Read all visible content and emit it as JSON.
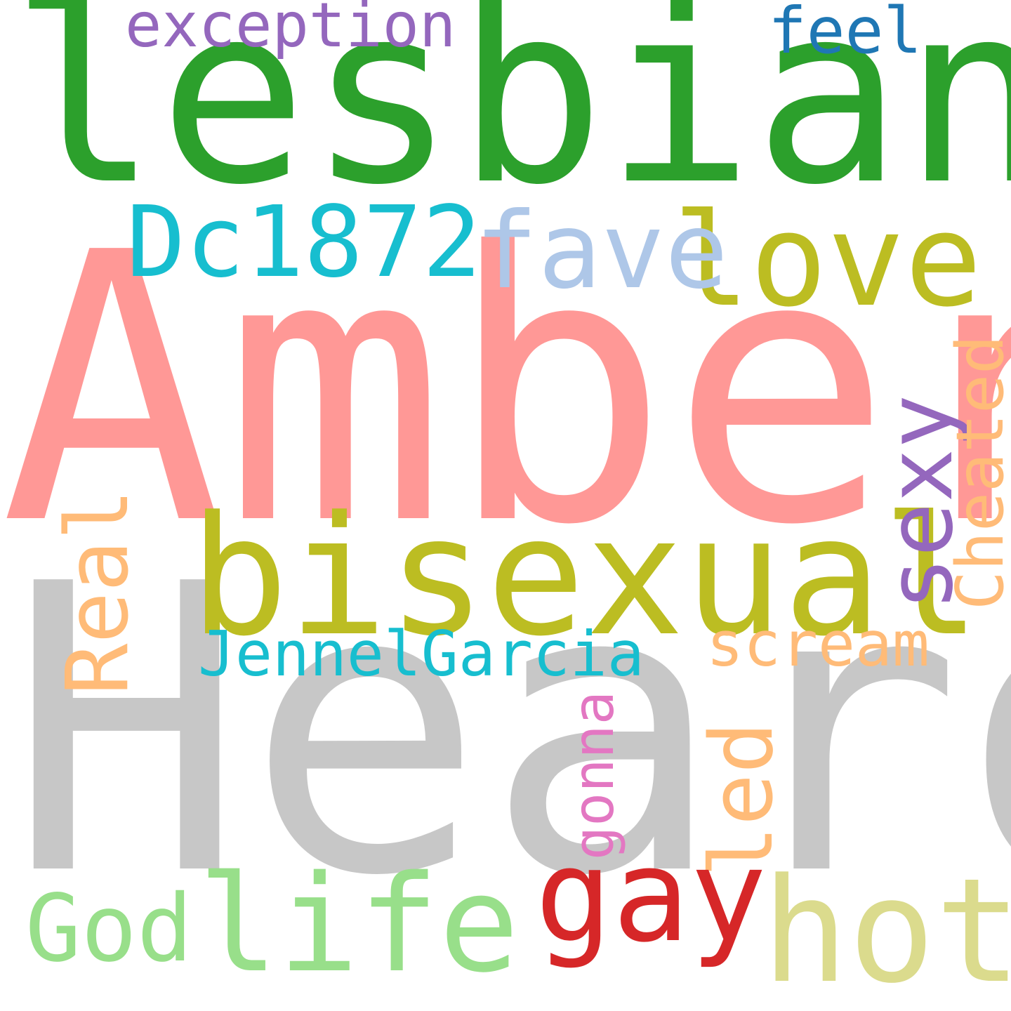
{
  "words": {
    "lesbian": {
      "text": "lesbian",
      "color": "#2ca02c"
    },
    "amber": {
      "text": "Amber",
      "color": "#ff9896"
    },
    "heard": {
      "text": "Heard",
      "color": "#c7c7c7"
    },
    "bisexual": {
      "text": "bisexual",
      "color": "#bcbd22"
    },
    "love": {
      "text": "love",
      "color": "#bcbd22"
    },
    "dc1872": {
      "text": "Dc1872",
      "color": "#17becf"
    },
    "fave": {
      "text": "fave",
      "color": "#aec7e8"
    },
    "exception": {
      "text": "exception",
      "color": "#9467bd"
    },
    "feel": {
      "text": "feel",
      "color": "#1f77b4"
    },
    "sexy": {
      "text": "sexy",
      "color": "#9467bd"
    },
    "cheated": {
      "text": "Cheated",
      "color": "#ffbb78"
    },
    "real": {
      "text": "Real",
      "color": "#ffbb78"
    },
    "jennelgarcia": {
      "text": "JennelGarcia",
      "color": "#17becf"
    },
    "scream": {
      "text": "scream",
      "color": "#ffbb78"
    },
    "gonna": {
      "text": "gonna",
      "color": "#e377c2"
    },
    "led": {
      "text": "led",
      "color": "#ffbb78"
    },
    "gay": {
      "text": "gay",
      "color": "#d62728"
    },
    "hot": {
      "text": "hot",
      "color": "#dbdb8d"
    },
    "god": {
      "text": "God",
      "color": "#98df8a"
    },
    "life": {
      "text": "life",
      "color": "#98df8a"
    }
  }
}
